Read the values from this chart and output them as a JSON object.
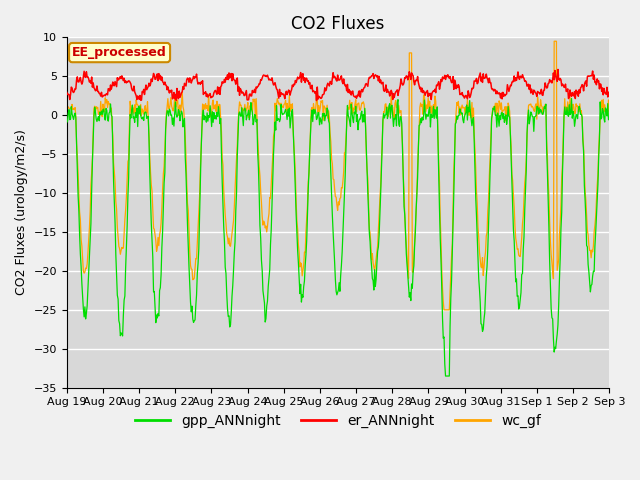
{
  "title": "CO2 Fluxes",
  "ylabel": "CO2 Fluxes (urology/m2/s)",
  "ylim": [
    -35,
    10
  ],
  "yticks": [
    -35,
    -30,
    -25,
    -20,
    -15,
    -10,
    -5,
    0,
    5,
    10
  ],
  "date_labels": [
    "Aug 19",
    "Aug 20",
    "Aug 21",
    "Aug 22",
    "Aug 23",
    "Aug 24",
    "Aug 25",
    "Aug 26",
    "Aug 27",
    "Aug 28",
    "Aug 29",
    "Aug 30",
    "Aug 31",
    "Sep 1",
    "Sep 2",
    "Sep 3"
  ],
  "n_days": 15,
  "gpp_color": "#00dd00",
  "er_color": "#ff0000",
  "wc_color": "#ffa500",
  "plot_bg_color": "#d8d8d8",
  "fig_bg_color": "#f0f0f0",
  "grid_color": "#ffffff",
  "legend_label_gpp": "gpp_ANNnight",
  "legend_label_er": "er_ANNnight",
  "legend_label_wc": "wc_gf",
  "text_label": "EE_processed",
  "title_fontsize": 12,
  "label_fontsize": 9,
  "tick_fontsize": 8,
  "legend_fontsize": 10
}
